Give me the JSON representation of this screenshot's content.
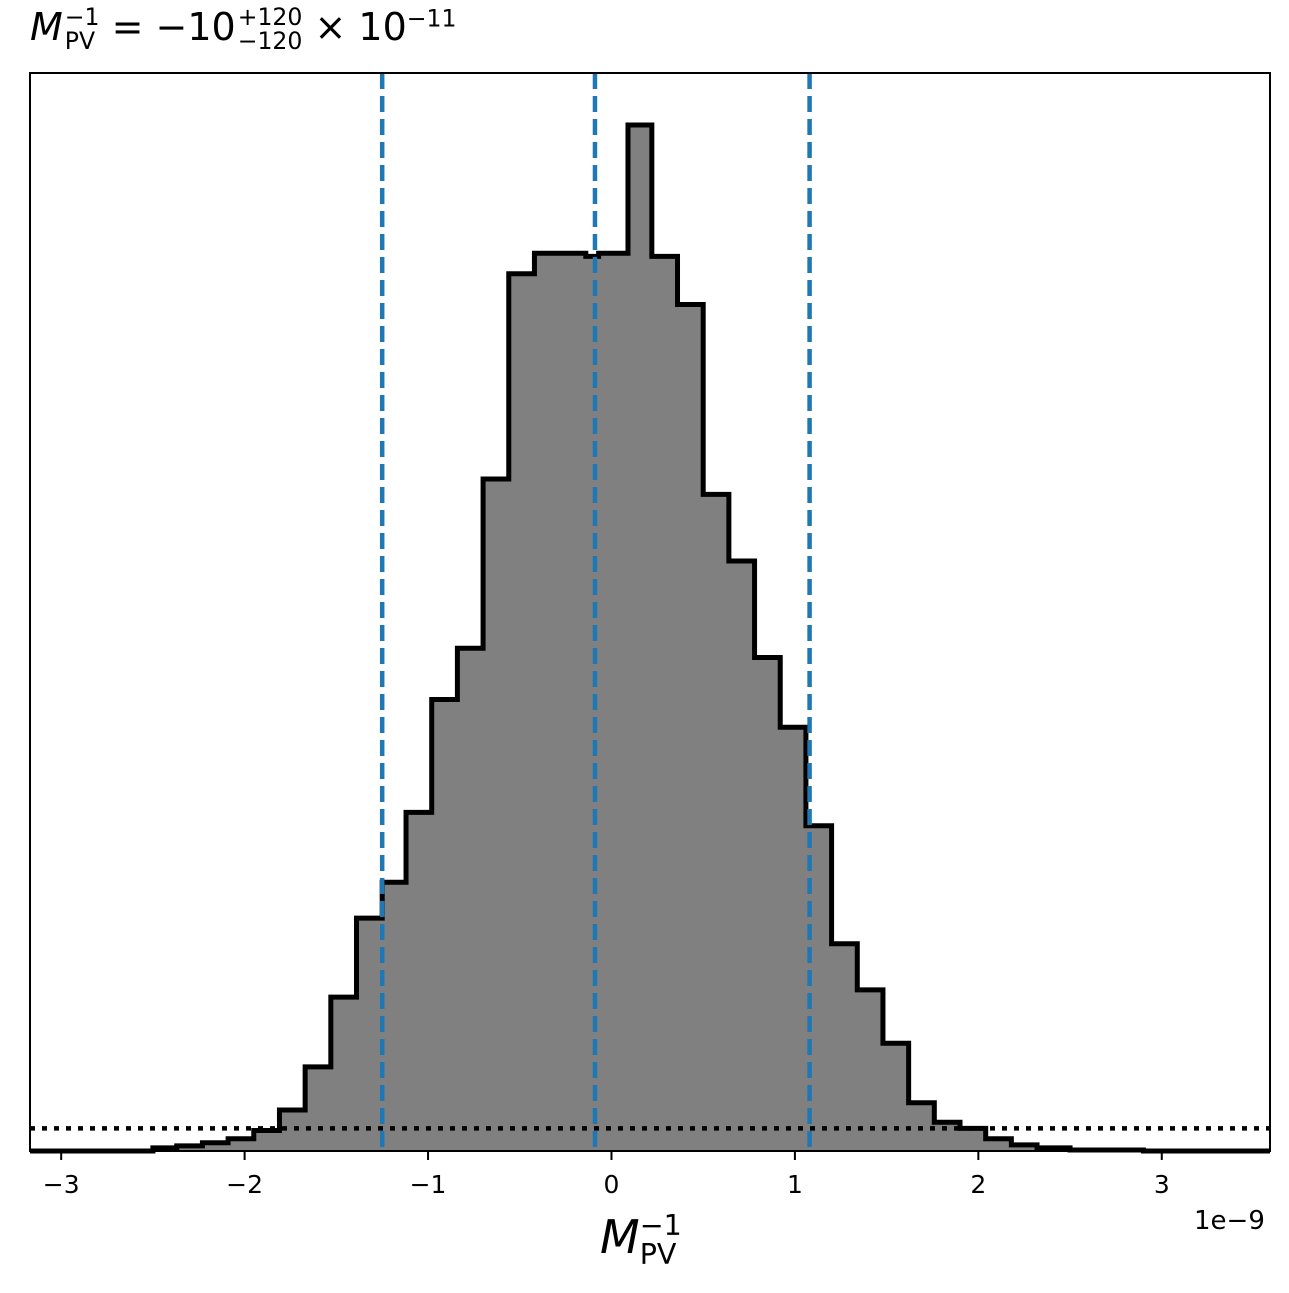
{
  "title": {
    "symbol": "M",
    "symbol_sup": "−1",
    "symbol_sub": "PV",
    "equals": " = −10",
    "upper": "+120",
    "lower": "−120",
    "times": " × 10",
    "exp": "−11"
  },
  "chart_data": {
    "type": "histogram",
    "xlabel": {
      "symbol": "M",
      "sup": "−1",
      "sub": "PV"
    },
    "x_offset_label": "1e−9",
    "xlim": [
      -3.17,
      3.59
    ],
    "ylim": [
      0,
      1.0
    ],
    "xticks": [
      -3,
      -2,
      -1,
      0,
      1,
      2,
      3
    ],
    "xtick_labels": [
      "−3",
      "−2",
      "−1",
      "0",
      "1",
      "2",
      "3"
    ],
    "bin_edges": [
      -3.17,
      -2.5,
      -2.37,
      -2.23,
      -2.09,
      -1.95,
      -1.81,
      -1.67,
      -1.53,
      -1.39,
      -1.25,
      -1.12,
      -0.98,
      -0.84,
      -0.7,
      -0.56,
      -0.42,
      -0.28,
      -0.14,
      -0.07,
      0.09,
      0.22,
      0.36,
      0.5,
      0.64,
      0.78,
      0.92,
      1.06,
      1.2,
      1.34,
      1.48,
      1.62,
      1.76,
      1.9,
      2.04,
      2.18,
      2.32,
      2.5,
      2.9,
      3.59
    ],
    "counts": [
      0.0,
      0.003,
      0.005,
      0.008,
      0.012,
      0.02,
      0.04,
      0.082,
      0.15,
      0.227,
      0.262,
      0.33,
      0.44,
      0.49,
      0.655,
      0.855,
      0.875,
      0.875,
      0.872,
      0.875,
      1.0,
      0.872,
      0.825,
      0.64,
      0.575,
      0.481,
      0.413,
      0.317,
      0.202,
      0.157,
      0.105,
      0.047,
      0.028,
      0.022,
      0.012,
      0.006,
      0.003,
      0.001,
      0.0
    ],
    "quantile_lines": {
      "values": [
        -1.25,
        -0.09,
        1.08
      ],
      "color": "#1f77b4",
      "style": "dashed"
    },
    "reference_line": {
      "y": 0.022,
      "style": "dotted",
      "color": "#000000"
    },
    "fill_color": "#808080",
    "edge_color": "#000000"
  }
}
